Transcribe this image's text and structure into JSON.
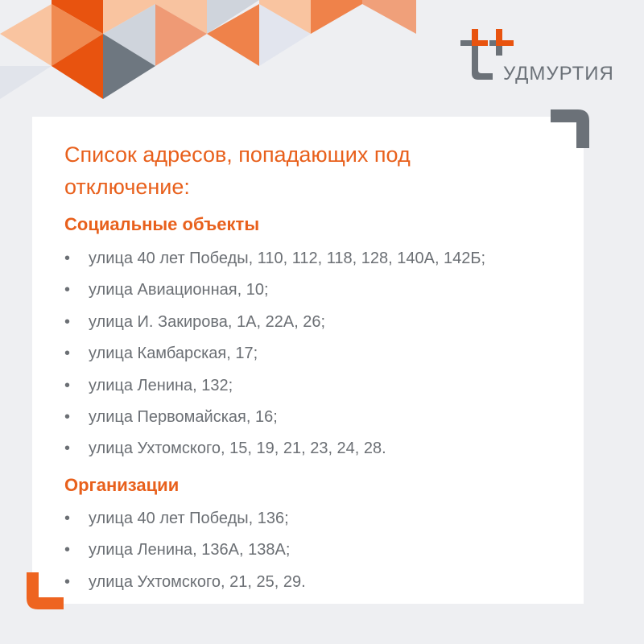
{
  "brand": {
    "logo_text": "УДМУРТИЯ",
    "accent": "#e8601c",
    "gray": "#6b7178"
  },
  "title": "Список адресов, попадающих под отключение:",
  "sections": [
    {
      "heading": "Социальные объекты",
      "items": [
        "улица 40 лет Победы, 110, 112, 118, 128, 140А, 142Б;",
        "улица Авиационная, 10;",
        "улица И. Закирова, 1А, 22А, 26;",
        "улица Камбарская, 17;",
        "улица Ленина, 132;",
        "улица Первомайская, 16;",
        "улица Ухтомского, 15, 19, 21, 23, 24, 28."
      ]
    },
    {
      "heading": "Организации",
      "items": [
        "улица 40 лет Победы, 136;",
        "улица Ленина, 136А, 138А;",
        "улица Ухтомского, 21, 25, 29."
      ]
    }
  ]
}
